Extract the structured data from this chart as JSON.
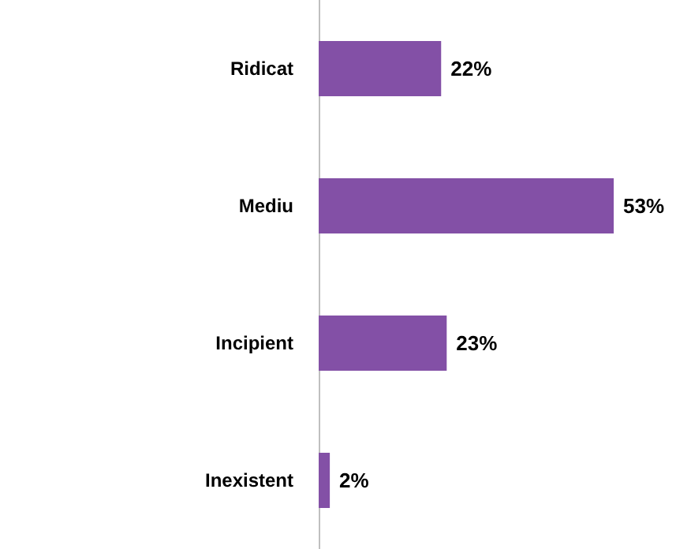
{
  "chart_data": {
    "type": "bar",
    "orientation": "horizontal",
    "categories": [
      "Ridicat",
      "Mediu",
      "Incipient",
      "Inexistent"
    ],
    "values": [
      22,
      53,
      23,
      2
    ],
    "color": "#8350a6",
    "value_labels": [
      "22%",
      "53%",
      "23%",
      "2%"
    ]
  }
}
